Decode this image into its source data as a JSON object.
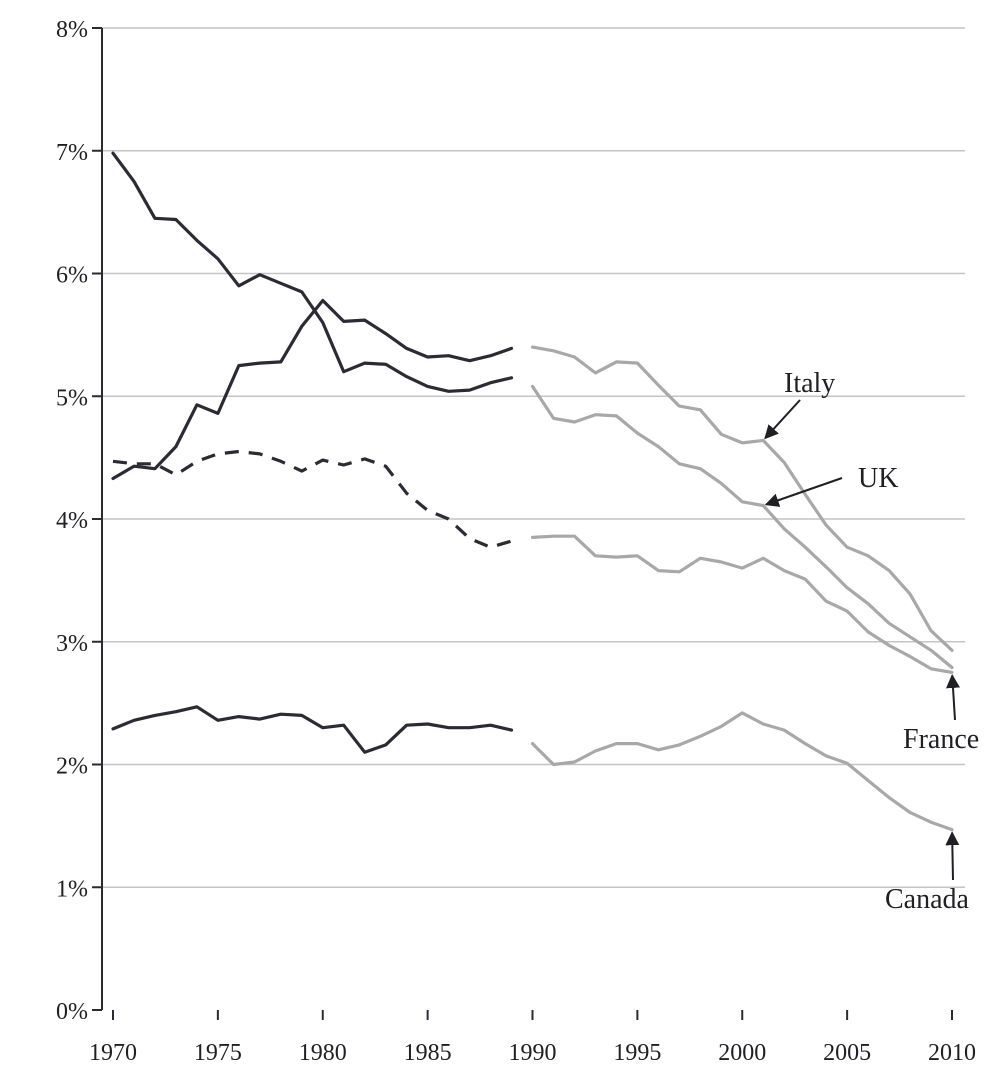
{
  "chart_data": {
    "type": "line",
    "title": "",
    "xlabel": "",
    "ylabel": "",
    "xlim": [
      1970,
      2010
    ],
    "ylim": [
      0,
      8
    ],
    "grid": true,
    "x_ticks": [
      1970,
      1975,
      1980,
      1985,
      1990,
      1995,
      2000,
      2005,
      2010
    ],
    "y_ticks": [
      0,
      1,
      2,
      3,
      4,
      5,
      6,
      7,
      8
    ],
    "x_tick_labels": [
      "1970",
      "1975",
      "1980",
      "1985",
      "1990",
      "1995",
      "2000",
      "2005",
      "2010"
    ],
    "y_tick_labels": [
      "0%",
      "1%",
      "2%",
      "3%",
      "4%",
      "5%",
      "6%",
      "7%",
      "8%"
    ],
    "colors": {
      "early": "#2b2b33",
      "late": "#a8a8a8",
      "grid": "#c4c4c4",
      "axis": "#2b2b33"
    },
    "series": [
      {
        "segments": [
          {
            "style": "solid",
            "color": "early",
            "x": [
              1970,
              1971,
              1972,
              1973,
              1974,
              1975,
              1976,
              1977,
              1978,
              1979,
              1980,
              1981,
              1982,
              1983,
              1984,
              1985,
              1986,
              1987,
              1988,
              1989
            ],
            "y": [
              6.98,
              6.75,
              6.45,
              6.44,
              6.27,
              6.12,
              5.9,
              5.99,
              5.92,
              5.85,
              5.6,
              5.2,
              5.27,
              5.26,
              5.16,
              5.08,
              5.04,
              5.05,
              5.11,
              5.15
            ]
          },
          {
            "style": "solid",
            "color": "late",
            "x": [
              1990,
              1991,
              1992,
              1993,
              1994,
              1995,
              1996,
              1997,
              1998,
              1999,
              2000,
              2001,
              2002,
              2003,
              2004,
              2005,
              2006,
              2007,
              2008,
              2009,
              2010
            ],
            "y": [
              5.4,
              5.37,
              5.32,
              5.19,
              5.28,
              5.27,
              5.09,
              4.92,
              4.89,
              4.69,
              4.62,
              4.64,
              4.46,
              4.2,
              3.95,
              3.77,
              3.7,
              3.58,
              3.39,
              3.09,
              2.93
            ]
          }
        ]
      },
      {
        "segments": [
          {
            "style": "solid",
            "color": "early",
            "x": [
              1970,
              1971,
              1972,
              1973,
              1974,
              1975,
              1976,
              1977,
              1978,
              1979,
              1980,
              1981,
              1982,
              1983,
              1984,
              1985,
              1986,
              1987,
              1988,
              1989
            ],
            "y": [
              4.33,
              4.43,
              4.41,
              4.59,
              4.93,
              4.86,
              5.25,
              5.27,
              5.28,
              5.57,
              5.78,
              5.61,
              5.62,
              5.51,
              5.39,
              5.32,
              5.33,
              5.29,
              5.33,
              5.39
            ]
          },
          {
            "style": "solid",
            "color": "late",
            "x": [
              1990,
              1991,
              1992,
              1993,
              1994,
              1995,
              1996,
              1997,
              1998,
              1999,
              2000,
              2001,
              2002,
              2003,
              2004,
              2005,
              2006,
              2007,
              2008,
              2009,
              2010
            ],
            "y": [
              5.08,
              4.82,
              4.79,
              4.85,
              4.84,
              4.7,
              4.59,
              4.45,
              4.41,
              4.29,
              4.14,
              4.11,
              3.92,
              3.77,
              3.61,
              3.44,
              3.31,
              3.15,
              3.04,
              2.93,
              2.79
            ]
          }
        ]
      },
      {
        "segments": [
          {
            "style": "dashed",
            "color": "early",
            "x": [
              1970,
              1971,
              1972,
              1973,
              1974,
              1975,
              1976,
              1977,
              1978,
              1979,
              1980,
              1981,
              1982,
              1983,
              1984,
              1985,
              1986,
              1987,
              1988,
              1989
            ],
            "y": [
              4.47,
              4.45,
              4.45,
              4.36,
              4.47,
              4.53,
              4.55,
              4.53,
              4.47,
              4.39,
              4.48,
              4.44,
              4.49,
              4.43,
              4.21,
              4.07,
              4.0,
              3.84,
              3.77,
              3.82
            ]
          },
          {
            "style": "solid",
            "color": "late",
            "x": [
              1990,
              1991,
              1992,
              1993,
              1994,
              1995,
              1996,
              1997,
              1998,
              1999,
              2000,
              2001,
              2002,
              2003,
              2004,
              2005,
              2006,
              2007,
              2008,
              2009,
              2010
            ],
            "y": [
              3.85,
              3.86,
              3.86,
              3.7,
              3.69,
              3.7,
              3.58,
              3.57,
              3.68,
              3.65,
              3.6,
              3.68,
              3.58,
              3.51,
              3.33,
              3.25,
              3.08,
              2.97,
              2.88,
              2.78,
              2.75
            ]
          }
        ]
      },
      {
        "segments": [
          {
            "style": "solid",
            "color": "early",
            "x": [
              1970,
              1971,
              1972,
              1973,
              1974,
              1975,
              1976,
              1977,
              1978,
              1979,
              1980,
              1981,
              1982,
              1983,
              1984,
              1985,
              1986,
              1987,
              1988,
              1989
            ],
            "y": [
              2.29,
              2.36,
              2.4,
              2.43,
              2.47,
              2.36,
              2.39,
              2.37,
              2.41,
              2.4,
              2.3,
              2.32,
              2.1,
              2.16,
              2.32,
              2.33,
              2.3,
              2.3,
              2.32,
              2.28
            ]
          },
          {
            "style": "solid",
            "color": "late",
            "x": [
              1990,
              1991,
              1992,
              1993,
              1994,
              1995,
              1996,
              1997,
              1998,
              1999,
              2000,
              2001,
              2002,
              2003,
              2004,
              2005,
              2006,
              2007,
              2008,
              2009,
              2010
            ],
            "y": [
              2.17,
              2.0,
              2.02,
              2.11,
              2.17,
              2.17,
              2.12,
              2.16,
              2.23,
              2.31,
              2.42,
              2.33,
              2.28,
              2.17,
              2.07,
              2.01,
              1.87,
              1.73,
              1.61,
              1.53,
              1.47
            ]
          }
        ]
      }
    ],
    "annotations": [
      {
        "text": "Italy",
        "point": [
          2001,
          4.64
        ]
      },
      {
        "text": "UK",
        "point": [
          2001,
          4.11
        ]
      },
      {
        "text": "France",
        "point": [
          2010,
          2.75
        ]
      },
      {
        "text": "Canada",
        "point": [
          2010,
          1.47
        ]
      }
    ]
  }
}
